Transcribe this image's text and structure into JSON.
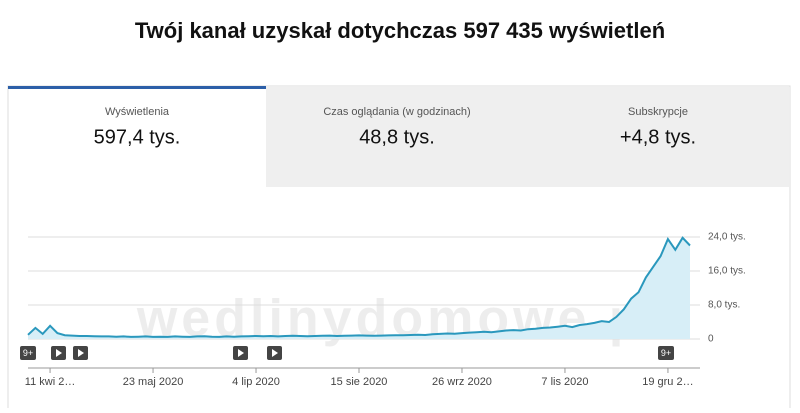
{
  "header": {
    "title": "Twój kanał uzyskał dotychczas 597 435 wyświetleń"
  },
  "tabs": [
    {
      "label": "Wyświetlenia",
      "value": "597,4 tys."
    },
    {
      "label": "Czas oglądania (w godzinach)",
      "value": "48,8 tys."
    },
    {
      "label": "Subskrypcje",
      "value": "+4,8 tys."
    }
  ],
  "watermark": "wedlinydomowe.pl",
  "chart_data": {
    "type": "line",
    "categories": [
      null,
      null,
      null,
      "11 kwi 2…",
      null,
      null,
      null,
      null,
      null,
      null,
      null,
      null,
      null,
      null,
      null,
      null,
      null,
      "23 maj 2020",
      null,
      null,
      null,
      null,
      null,
      null,
      null,
      null,
      null,
      null,
      null,
      null,
      null,
      "4 lip 2020",
      null,
      null,
      null,
      null,
      null,
      null,
      null,
      null,
      null,
      null,
      null,
      null,
      null,
      "15 sie 2020",
      null,
      null,
      null,
      null,
      null,
      null,
      null,
      null,
      null,
      null,
      null,
      null,
      null,
      "26 wrz 2020",
      null,
      null,
      null,
      null,
      null,
      null,
      null,
      null,
      null,
      null,
      null,
      null,
      null,
      "7 lis 2020",
      null,
      null,
      null,
      null,
      null,
      null,
      null,
      null,
      null,
      null,
      null,
      null,
      null,
      "19 gru 2…",
      null,
      null,
      null
    ],
    "series": [
      {
        "color": "#2a98bd",
        "fill": "#d7eef7",
        "values": [
          1000,
          2600,
          1200,
          3100,
          1400,
          900,
          800,
          700,
          700,
          650,
          600,
          600,
          550,
          600,
          500,
          550,
          600,
          500,
          550,
          500,
          600,
          550,
          500,
          600,
          650,
          550,
          500,
          600,
          550,
          600,
          650,
          700,
          650,
          700,
          600,
          700,
          750,
          700,
          650,
          700,
          750,
          800,
          700,
          750,
          800,
          850,
          800,
          750,
          800,
          850,
          900,
          900,
          950,
          1000,
          950,
          1100,
          1200,
          1300,
          1250,
          1400,
          1500,
          1600,
          1700,
          1600,
          1800,
          2000,
          2100,
          2000,
          2300,
          2400,
          2600,
          2700,
          2900,
          3100,
          2800,
          3300,
          3500,
          3800,
          4200,
          4000,
          5200,
          7000,
          9500,
          11000,
          14500,
          17000,
          19500,
          23500,
          21000,
          23800,
          22000
        ]
      }
    ],
    "ylim": [
      0,
      24000
    ],
    "yticks": [
      {
        "value": 0,
        "label": "0"
      },
      {
        "value": 8000,
        "label": "8,0 tys."
      },
      {
        "value": 16000,
        "label": "16,0 tys."
      },
      {
        "value": 24000,
        "label": "24,0 tys."
      }
    ],
    "grid": true,
    "annotations": [
      "9+",
      "9+"
    ]
  }
}
